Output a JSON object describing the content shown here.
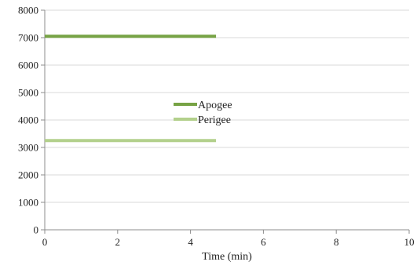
{
  "chart_data": {
    "type": "line",
    "title": "",
    "xlabel": "Time (min)",
    "ylabel": "",
    "xlim": [
      0,
      10
    ],
    "ylim": [
      0,
      8000
    ],
    "xticks": [
      0,
      2,
      4,
      6,
      8,
      10
    ],
    "yticks": [
      0,
      1000,
      2000,
      3000,
      4000,
      5000,
      6000,
      7000,
      8000
    ],
    "grid": "horizontal",
    "legend_position": "center",
    "series": [
      {
        "name": "Apogee",
        "color": "#77a345",
        "x": [
          0,
          4.7
        ],
        "values": [
          7050,
          7050
        ]
      },
      {
        "name": "Perigee",
        "color": "#b3d08c",
        "x": [
          0,
          4.7
        ],
        "values": [
          3250,
          3250
        ]
      }
    ]
  }
}
